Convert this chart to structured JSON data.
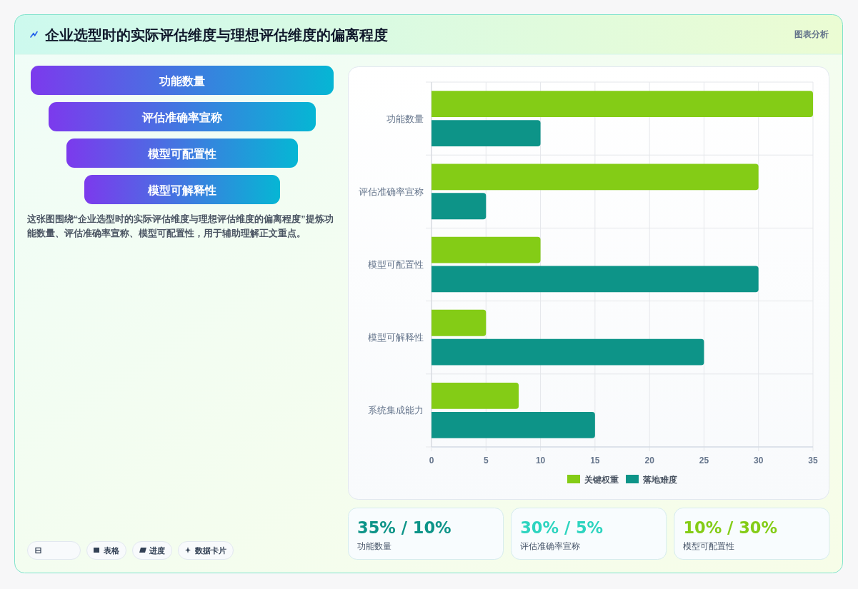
{
  "chart_data": [
    {
      "type": "other",
      "title": "企业选型时的实际评估维度与理想评估维度的偏离程度",
      "subtitle": "图表分析",
      "categories": [
        "功能数量",
        "评估准确率宣称",
        "模型可配置性",
        "模型可解释性"
      ],
      "annotations": [
        "这张图围绕“企业选型时的实际评估维度与理想评估维度的偏离程度”提炼功能数量、评估准确率宣称、模型可配置性，用于辅助理解正文重点。",
        "表格",
        "进度",
        "数据卡片"
      ]
    },
    {
      "type": "bar",
      "orientation": "horizontal",
      "categories": [
        "功能数量",
        "评估准确率宣称",
        "模型可配置性",
        "模型可解释性",
        "系统集成能力"
      ],
      "series": [
        {
          "name": "关键权重",
          "color": "#84cc16",
          "values": [
            35,
            30,
            10,
            5,
            8
          ]
        },
        {
          "name": "落地难度",
          "color": "#0d9488",
          "values": [
            10,
            5,
            30,
            25,
            15
          ]
        }
      ],
      "xlim": [
        0,
        35
      ],
      "xticks": [
        0,
        5,
        10,
        15,
        20,
        25,
        30,
        35
      ],
      "grid": true,
      "legend": "bottom"
    },
    {
      "type": "other",
      "title": "35% / 10%",
      "subtitle": "功能数量",
      "color": "#0d9488"
    },
    {
      "type": "other",
      "title": "30% / 5%",
      "subtitle": "评估准确率宣称",
      "color": "#2dd4bf"
    },
    {
      "type": "other",
      "title": "10% / 30%",
      "subtitle": "模型可配置性",
      "color": "#84cc16"
    }
  ]
}
